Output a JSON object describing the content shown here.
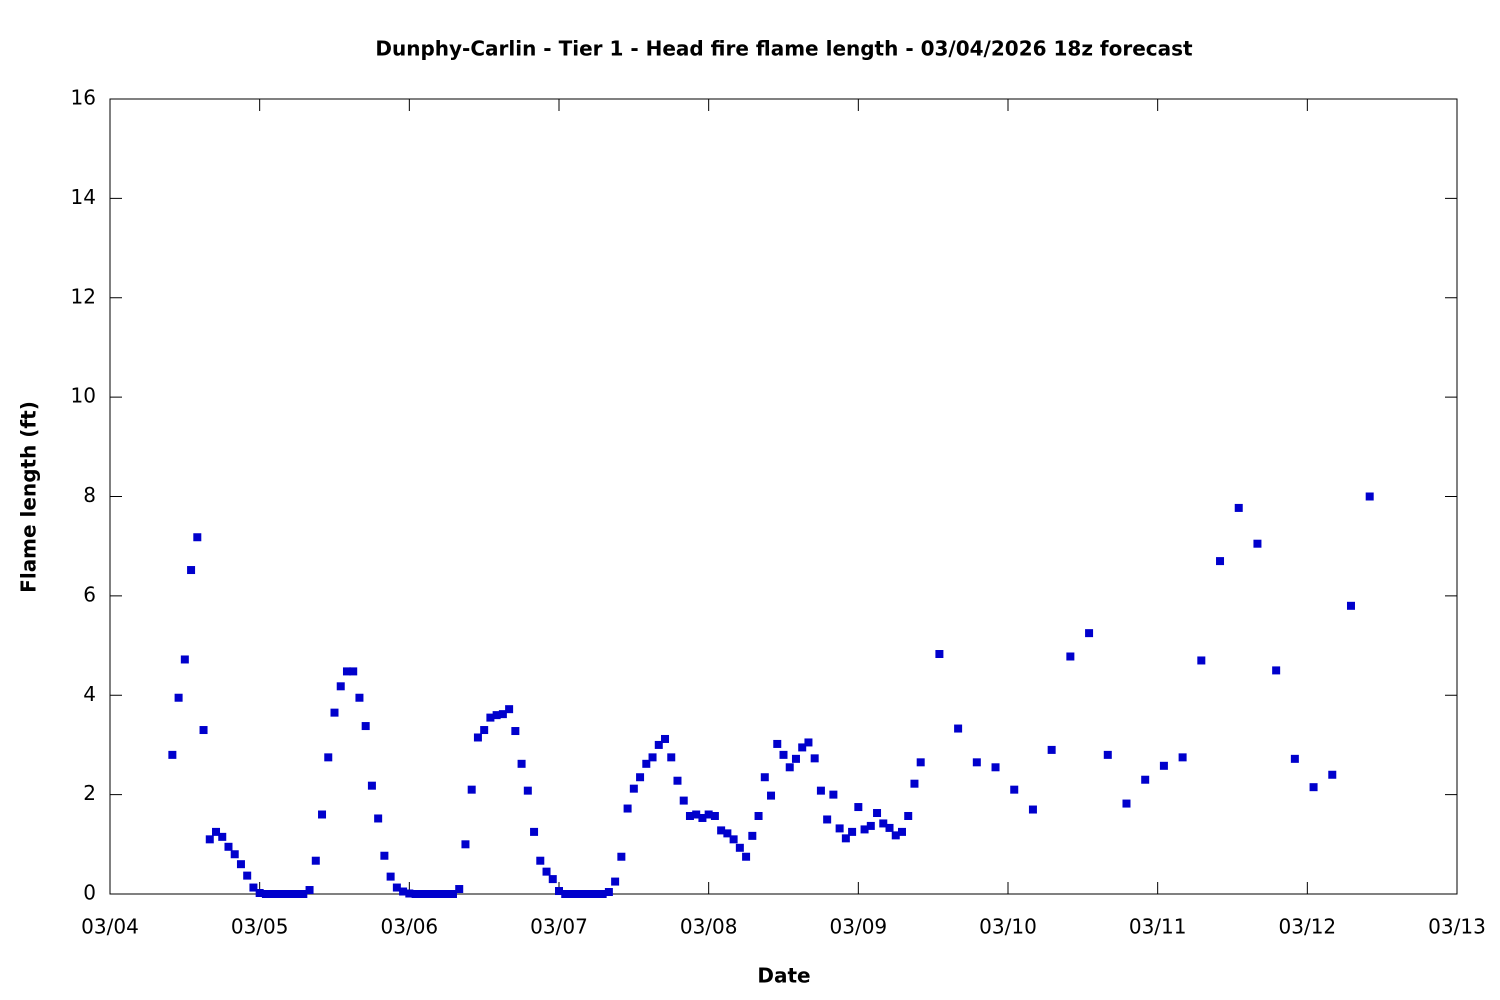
{
  "chart_data": {
    "type": "scatter",
    "title": "Dunphy-Carlin - Tier 1 - Head fire flame length - 03/04/2026 18z forecast",
    "x_label": "Date",
    "y_label": "Flame length (ft)",
    "grid": false,
    "xlim": [
      0,
      216
    ],
    "xticks": [
      {
        "value": 0,
        "label": "03/04"
      },
      {
        "value": 24,
        "label": "03/05"
      },
      {
        "value": 48,
        "label": "03/06"
      },
      {
        "value": 72,
        "label": "03/07"
      },
      {
        "value": 96,
        "label": "03/08"
      },
      {
        "value": 120,
        "label": "03/09"
      },
      {
        "value": 144,
        "label": "03/10"
      },
      {
        "value": 168,
        "label": "03/11"
      },
      {
        "value": 192,
        "label": "03/12"
      },
      {
        "value": 216,
        "label": "03/13"
      }
    ],
    "ylim": [
      0,
      16
    ],
    "yticks": [
      0,
      2,
      4,
      6,
      8,
      10,
      12,
      14,
      16
    ],
    "series": [
      {
        "color": "#0000cc",
        "x": [
          10,
          11,
          12,
          13,
          14,
          15,
          16,
          17,
          18,
          19,
          20,
          21,
          22,
          23,
          24,
          25,
          26,
          27,
          28,
          29,
          30,
          31,
          32,
          33,
          34,
          35,
          36,
          37,
          38,
          39,
          40,
          41,
          42,
          43,
          44,
          45,
          46,
          47,
          48,
          49,
          50,
          51,
          52,
          53,
          54,
          55,
          56,
          57,
          58,
          59,
          60,
          61,
          62,
          63,
          64,
          65,
          66,
          67,
          68,
          69,
          70,
          71,
          72,
          73,
          74,
          75,
          76,
          77,
          78,
          79,
          80,
          81,
          82,
          83,
          84,
          85,
          86,
          87,
          88,
          89,
          90,
          91,
          92,
          93,
          94,
          95,
          96,
          97,
          98,
          99,
          100,
          101,
          102,
          103,
          104,
          105,
          106,
          107,
          108,
          109,
          110,
          111,
          112,
          113,
          114,
          115,
          116,
          117,
          118,
          119,
          120,
          121,
          122,
          123,
          124,
          125,
          126,
          127,
          128,
          129,
          130,
          133,
          136,
          139,
          142,
          145,
          148,
          151,
          154,
          157,
          160,
          163,
          166,
          169,
          172,
          175,
          178,
          181,
          184,
          187,
          190,
          193,
          196,
          199,
          202
        ],
        "values": [
          2.8,
          3.95,
          4.72,
          6.52,
          7.18,
          3.3,
          1.1,
          1.25,
          1.15,
          0.95,
          0.8,
          0.6,
          0.37,
          0.13,
          0.02,
          0,
          0,
          0,
          0,
          0,
          0,
          0,
          0.08,
          0.67,
          1.6,
          2.75,
          3.65,
          4.18,
          4.48,
          4.48,
          3.95,
          3.38,
          2.18,
          1.52,
          0.77,
          0.35,
          0.13,
          0.05,
          0.01,
          0,
          0,
          0,
          0,
          0,
          0,
          0,
          0.1,
          1.0,
          2.1,
          3.15,
          3.3,
          3.55,
          3.6,
          3.62,
          3.72,
          3.28,
          2.62,
          2.08,
          1.25,
          0.67,
          0.45,
          0.3,
          0.06,
          0,
          0,
          0,
          0,
          0,
          0,
          0,
          0.04,
          0.25,
          0.75,
          1.72,
          2.12,
          2.35,
          2.62,
          2.75,
          3.0,
          3.12,
          2.75,
          2.28,
          1.88,
          1.57,
          1.6,
          1.53,
          1.6,
          1.57,
          1.28,
          1.22,
          1.1,
          0.93,
          0.75,
          1.17,
          1.57,
          2.35,
          1.98,
          3.02,
          2.8,
          2.55,
          2.72,
          2.95,
          3.05,
          2.73,
          2.08,
          1.5,
          2.0,
          1.32,
          1.12,
          1.25,
          1.75,
          1.3,
          1.37,
          1.63,
          1.42,
          1.33,
          1.18,
          1.25,
          1.57,
          2.22,
          2.65,
          4.83,
          3.33,
          2.65,
          2.55,
          2.1,
          1.7,
          2.9,
          4.78,
          5.25,
          2.8,
          1.82,
          2.3,
          2.58,
          2.75,
          4.7,
          6.7,
          7.77,
          7.05,
          4.5,
          2.72,
          2.15,
          2.4,
          5.8,
          8.0
        ]
      }
    ]
  }
}
